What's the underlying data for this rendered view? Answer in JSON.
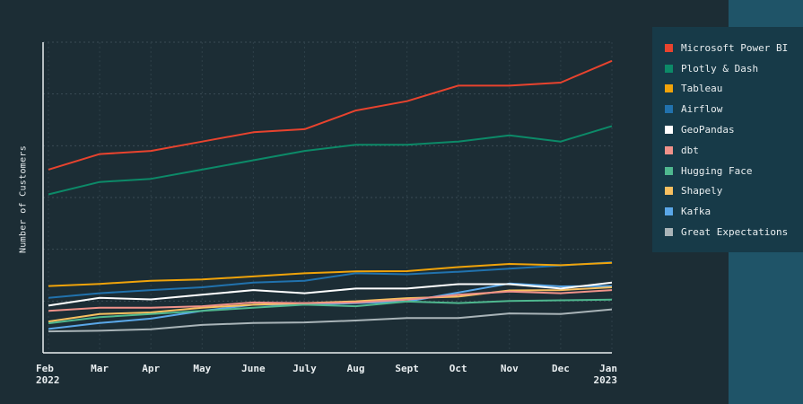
{
  "chart_data": {
    "type": "line",
    "title": "",
    "xlabel": "",
    "ylabel": "Number of Customers",
    "x": [
      "Feb",
      "Mar",
      "Apr",
      "May",
      "June",
      "July",
      "Aug",
      "Sept",
      "Oct",
      "Nov",
      "Dec",
      "Jan"
    ],
    "x_sublabels": {
      "0": "2022",
      "11": "2023"
    },
    "ylim": [
      0,
      100
    ],
    "grid": true,
    "legend_position": "right",
    "series": [
      {
        "name": "Microsoft Power BI",
        "color": "#e8432e",
        "values": [
          59,
          64,
          65,
          68,
          71,
          72,
          78,
          81,
          86,
          86,
          87,
          94
        ]
      },
      {
        "name": "Plotly & Dash",
        "color": "#0c8a68",
        "values": [
          51,
          55,
          56,
          59,
          62,
          65,
          67,
          67,
          68,
          70,
          68,
          73
        ]
      },
      {
        "name": "Tableau",
        "color": "#f0a30a",
        "values": [
          21.5,
          22.2,
          23.2,
          23.6,
          24.6,
          25.6,
          26.2,
          26.3,
          27.6,
          28.6,
          28.2,
          29
        ]
      },
      {
        "name": "Airflow",
        "color": "#2172ad",
        "values": [
          17.7,
          19.2,
          20.2,
          21.1,
          22.6,
          23.2,
          25.6,
          25.3,
          26.1,
          27.1,
          28.1,
          29.2
        ]
      },
      {
        "name": "GeoPandas",
        "color": "#ffffff",
        "values": [
          15.2,
          17.7,
          17.2,
          18.7,
          20.2,
          19.2,
          20.7,
          20.7,
          22.1,
          22.1,
          20.7,
          22.6
        ]
      },
      {
        "name": "dbt",
        "color": "#f0928a",
        "values": [
          13.5,
          14.5,
          14.5,
          15.0,
          16.2,
          16.0,
          16.2,
          17.1,
          18.7,
          19.7,
          19.2,
          20.2
        ]
      },
      {
        "name": "Hugging Face",
        "color": "#4fb88f",
        "values": [
          9.5,
          11.5,
          12.5,
          13.5,
          14.5,
          15.5,
          15.0,
          16.5,
          16.0,
          16.7,
          16.9,
          17.1
        ]
      },
      {
        "name": "Shapely",
        "color": "#f7c060",
        "values": [
          10.1,
          12.5,
          13.0,
          14.5,
          15.5,
          16.0,
          16.6,
          17.6,
          18.1,
          20.1,
          20.2,
          21.1
        ]
      },
      {
        "name": "Kafka",
        "color": "#5aa7e8",
        "values": [
          7.7,
          9.6,
          11.0,
          13.5,
          15.5,
          15.5,
          16.0,
          16.5,
          19.4,
          22.3,
          21.4,
          21.5
        ]
      },
      {
        "name": "Great Expectations",
        "color": "#a9b4b8",
        "values": [
          6.9,
          7.1,
          7.6,
          9.0,
          9.6,
          9.8,
          10.4,
          11.2,
          11.2,
          12.7,
          12.5,
          14.0
        ]
      }
    ]
  }
}
